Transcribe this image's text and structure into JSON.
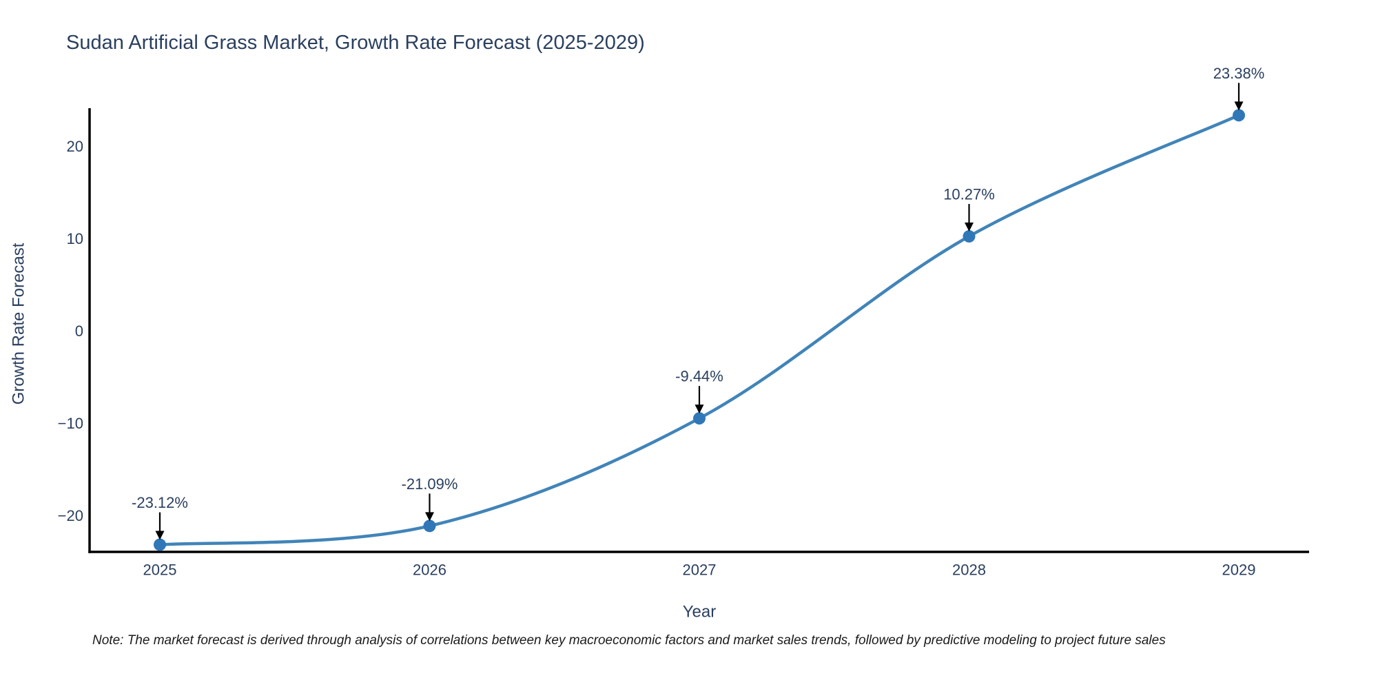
{
  "chart_data": {
    "type": "line",
    "title": "Sudan Artificial Grass Market, Growth Rate Forecast (2025-2029)",
    "xlabel": "Year",
    "ylabel": "Growth Rate Forecast",
    "categories": [
      "2025",
      "2026",
      "2027",
      "2028",
      "2029"
    ],
    "series": [
      {
        "name": "Growth Rate Forecast",
        "values": [
          -23.12,
          -21.09,
          -9.44,
          10.27,
          23.38
        ],
        "point_labels": [
          "-23.12%",
          "-21.09%",
          "-9.44%",
          "10.27%",
          "23.38%"
        ]
      }
    ],
    "line_shape": "spline",
    "grid": false,
    "legend_position": "none",
    "ylim": [
      -23.9,
      24.15
    ],
    "yticks": [
      {
        "value": 20,
        "label": "20"
      },
      {
        "value": 10,
        "label": "10"
      },
      {
        "value": 0,
        "label": "0"
      },
      {
        "value": -10,
        "label": "−10"
      },
      {
        "value": -20,
        "label": "−20"
      }
    ],
    "colors": {
      "line": "#4184b8",
      "marker": "#3077b8",
      "axis": "#000000",
      "text": "#2a3f5f",
      "annotation_text": "#2a3f5f",
      "annotation_arrow": "#000000",
      "background": "#ffffff",
      "note_text": "#1a1a1a"
    }
  },
  "note": "Note: The market forecast is derived through analysis of correlations between key macroeconomic factors and market sales trends, followed by predictive modeling to project future sales"
}
